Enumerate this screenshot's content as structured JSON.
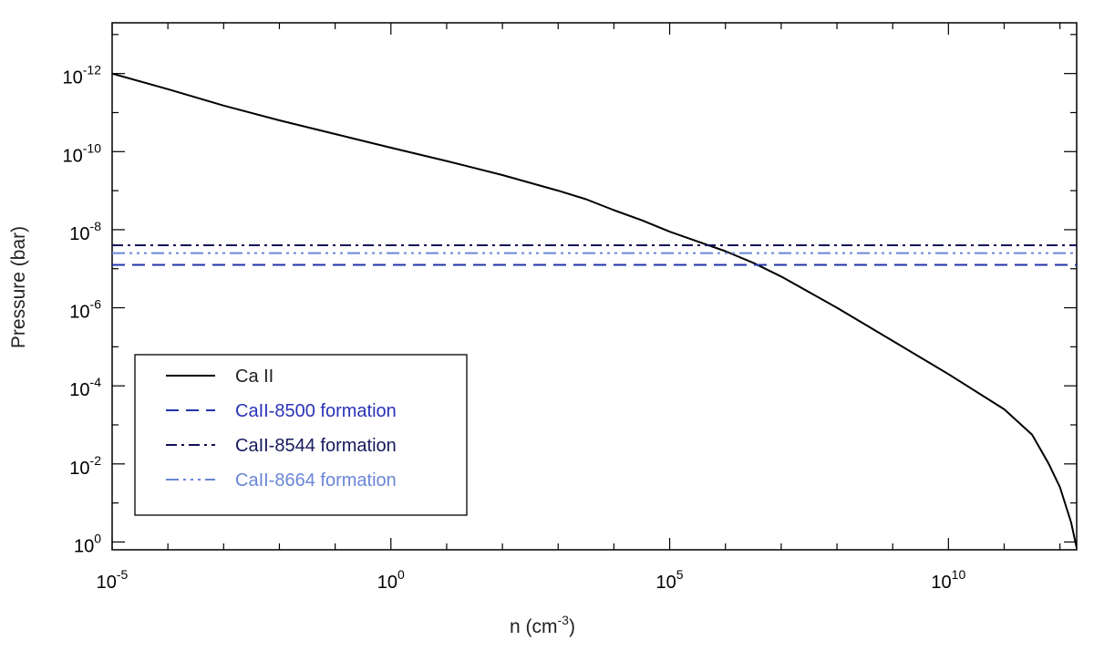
{
  "chart_data": {
    "type": "line",
    "title": "",
    "xlabel": "n (cm",
    "xlabel_sup": "-3",
    "xlabel_suffix": ")",
    "ylabel": "Pressure (bar)",
    "xscale": "log",
    "yscale": "log",
    "yaxis_inverted": true,
    "xlim_exp": [
      -5,
      12.3
    ],
    "ylim_exp": [
      -13.3,
      0.2
    ],
    "x_ticks": [
      {
        "base": "10",
        "exp": "-5",
        "value_exp": -5
      },
      {
        "base": "10",
        "exp": "0",
        "value_exp": 0
      },
      {
        "base": "10",
        "exp": "5",
        "value_exp": 5
      },
      {
        "base": "10",
        "exp": "10",
        "value_exp": 10
      }
    ],
    "y_ticks": [
      {
        "base": "10",
        "exp": "-12",
        "value_exp": -12
      },
      {
        "base": "10",
        "exp": "-10",
        "value_exp": -10
      },
      {
        "base": "10",
        "exp": "-8",
        "value_exp": -8
      },
      {
        "base": "10",
        "exp": "-6",
        "value_exp": -6
      },
      {
        "base": "10",
        "exp": "-4",
        "value_exp": -4
      },
      {
        "base": "10",
        "exp": "-2",
        "value_exp": -2
      },
      {
        "base": "10",
        "exp": "0",
        "value_exp": 0
      }
    ],
    "legend_position": "lower-left",
    "series": [
      {
        "name": "Ca II",
        "style": "solid",
        "color": "#000000",
        "label_color": "#222222",
        "points_log": [
          [
            -5,
            -12.0
          ],
          [
            -4,
            -11.6
          ],
          [
            -3,
            -11.18
          ],
          [
            -2,
            -10.8
          ],
          [
            -1,
            -10.45
          ],
          [
            0,
            -10.1
          ],
          [
            1,
            -9.76
          ],
          [
            2,
            -9.4
          ],
          [
            3,
            -9.0
          ],
          [
            3.5,
            -8.78
          ],
          [
            4,
            -8.5
          ],
          [
            4.5,
            -8.24
          ],
          [
            5,
            -7.95
          ],
          [
            5.5,
            -7.7
          ],
          [
            6,
            -7.45
          ],
          [
            6.5,
            -7.15
          ],
          [
            7,
            -6.8
          ],
          [
            8,
            -6.0
          ],
          [
            9,
            -5.15
          ],
          [
            10,
            -4.3
          ],
          [
            11,
            -3.4
          ],
          [
            11.5,
            -2.75
          ],
          [
            11.8,
            -2.0
          ],
          [
            12.0,
            -1.4
          ],
          [
            12.2,
            -0.5
          ],
          [
            12.3,
            0.15
          ]
        ]
      },
      {
        "name": "CaII-8500 formation",
        "style": "dashed",
        "color": "#2233aa",
        "label_color": "#2a32b8",
        "y_exp": -7.1
      },
      {
        "name": "CaII-8544 formation",
        "style": "dashdot",
        "color": "#111155",
        "label_color": "#151a5e",
        "y_exp": -7.6
      },
      {
        "name": "CaII-8664 formation",
        "style": "dashdotdotdot",
        "color": "#6a86d6",
        "label_color": "#6a86d6",
        "y_exp": -7.4
      }
    ]
  }
}
